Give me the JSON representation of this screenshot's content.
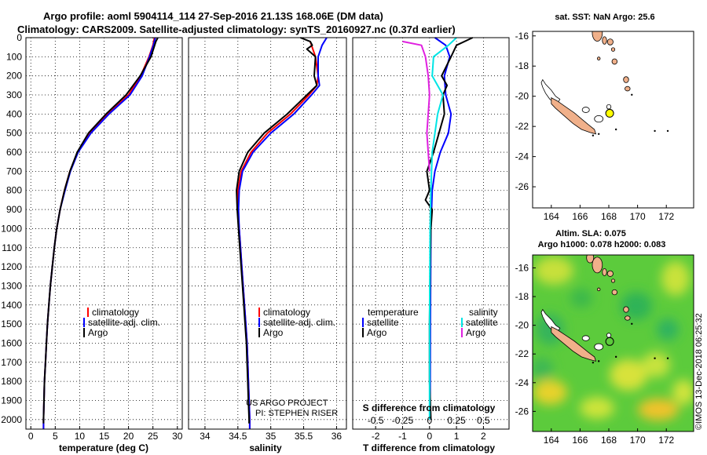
{
  "header": {
    "line1": "Argo profile: aoml 5904114_114 27-Sep-2016 21.13S 168.06E (DM data)",
    "line2": "Climatology: CARS2009. Satellite-adjusted climatology: synTS_20160927.nc (0.37d earlier)"
  },
  "colors": {
    "climatology": "#ff0000",
    "satellite": "#0000ff",
    "argo": "#000000",
    "sal_sat": "#00e5e5",
    "sal_argo": "#e020e0",
    "land": "#f0b08a"
  },
  "depth_ticks": [
    "0",
    "100",
    "200",
    "300",
    "400",
    "500",
    "600",
    "700",
    "800",
    "900",
    "1000",
    "1100",
    "1200",
    "1300",
    "1400",
    "1500",
    "1600",
    "1700",
    "1800",
    "1900",
    "2000"
  ],
  "credit": {
    "line1": "US ARGO PROJECT",
    "line2": "PI: STEPHEN RISER"
  },
  "timestamp": "©IMOS 13-Dec-2018 06:25:32",
  "chart_data": [
    {
      "type": "line",
      "xlabel": "temperature (deg C)",
      "xlim": [
        -1,
        31
      ],
      "ylim": [
        2050,
        0
      ],
      "x_ticks": [
        "0",
        "5",
        "10",
        "15",
        "20",
        "25",
        "30"
      ],
      "grid": true,
      "legend": [
        "climatology",
        "satellite-adj. clim.",
        "Argo"
      ],
      "series": [
        {
          "name": "climatology",
          "color": "#ff0000",
          "points": [
            [
              25.3,
              0
            ],
            [
              25.0,
              40
            ],
            [
              24.2,
              100
            ],
            [
              22.5,
              200
            ],
            [
              20.0,
              300
            ],
            [
              15.8,
              400
            ],
            [
              12.0,
              500
            ],
            [
              9.6,
              600
            ],
            [
              8.0,
              700
            ],
            [
              6.9,
              800
            ],
            [
              6.0,
              900
            ],
            [
              5.3,
              1000
            ],
            [
              4.8,
              1100
            ],
            [
              4.4,
              1200
            ],
            [
              4.0,
              1300
            ],
            [
              3.7,
              1400
            ],
            [
              3.4,
              1500
            ],
            [
              3.2,
              1600
            ],
            [
              3.0,
              1700
            ],
            [
              2.8,
              1800
            ],
            [
              2.7,
              1900
            ],
            [
              2.6,
              2000
            ],
            [
              2.6,
              2050
            ]
          ]
        },
        {
          "name": "satellite-adj. clim.",
          "color": "#0000ff",
          "points": [
            [
              25.5,
              0
            ],
            [
              25.1,
              40
            ],
            [
              24.3,
              100
            ],
            [
              22.8,
              200
            ],
            [
              20.3,
              300
            ],
            [
              16.0,
              400
            ],
            [
              12.3,
              500
            ],
            [
              9.7,
              600
            ],
            [
              8.1,
              700
            ],
            [
              7.0,
              800
            ],
            [
              6.0,
              900
            ],
            [
              5.3,
              1000
            ],
            [
              4.8,
              1100
            ],
            [
              4.4,
              1200
            ],
            [
              4.0,
              1300
            ],
            [
              3.7,
              1400
            ],
            [
              3.4,
              1500
            ],
            [
              3.2,
              1600
            ],
            [
              3.0,
              1700
            ],
            [
              2.8,
              1800
            ],
            [
              2.7,
              1900
            ],
            [
              2.6,
              2000
            ],
            [
              2.6,
              2050
            ]
          ]
        },
        {
          "name": "Argo",
          "color": "#000000",
          "points": [
            [
              26.0,
              0
            ],
            [
              25.6,
              20
            ],
            [
              24.6,
              100
            ],
            [
              22.4,
              200
            ],
            [
              19.5,
              300
            ],
            [
              15.4,
              400
            ],
            [
              11.8,
              500
            ],
            [
              9.5,
              600
            ],
            [
              8.0,
              700
            ],
            [
              6.9,
              800
            ],
            [
              6.0,
              900
            ],
            [
              5.3,
              1000
            ],
            [
              4.8,
              1100
            ],
            [
              4.4,
              1200
            ],
            [
              4.0,
              1300
            ],
            [
              3.7,
              1400
            ],
            [
              3.4,
              1500
            ],
            [
              3.2,
              1600
            ],
            [
              3.0,
              1700
            ],
            [
              2.8,
              1800
            ],
            [
              2.7,
              1900
            ],
            [
              2.6,
              2000
            ],
            [
              2.6,
              2020
            ]
          ]
        }
      ]
    },
    {
      "type": "line",
      "xlabel": "salinity",
      "xlim": [
        33.75,
        36.15
      ],
      "ylim": [
        2050,
        0
      ],
      "x_ticks": [
        "34",
        "34.5",
        "35",
        "35.5",
        "36"
      ],
      "grid": true,
      "legend": [
        "climatology",
        "satellite-adj. clim.",
        "Argo"
      ],
      "series": [
        {
          "name": "climatology",
          "color": "#ff0000",
          "points": [
            [
              35.6,
              20
            ],
            [
              35.68,
              100
            ],
            [
              35.72,
              200
            ],
            [
              35.7,
              250
            ],
            [
              35.58,
              300
            ],
            [
              35.3,
              400
            ],
            [
              34.95,
              500
            ],
            [
              34.7,
              600
            ],
            [
              34.55,
              700
            ],
            [
              34.5,
              800
            ],
            [
              34.5,
              900
            ],
            [
              34.52,
              1000
            ],
            [
              34.54,
              1100
            ],
            [
              34.56,
              1200
            ],
            [
              34.58,
              1300
            ],
            [
              34.6,
              1400
            ],
            [
              34.62,
              1500
            ],
            [
              34.64,
              1600
            ],
            [
              34.65,
              1700
            ],
            [
              34.66,
              1800
            ],
            [
              34.67,
              1900
            ],
            [
              34.68,
              2000
            ],
            [
              34.68,
              2050
            ]
          ]
        },
        {
          "name": "satellite-adj. clim.",
          "color": "#0000ff",
          "points": [
            [
              35.85,
              0
            ],
            [
              35.78,
              40
            ],
            [
              35.72,
              100
            ],
            [
              35.72,
              200
            ],
            [
              35.74,
              250
            ],
            [
              35.62,
              300
            ],
            [
              35.35,
              400
            ],
            [
              35.0,
              500
            ],
            [
              34.73,
              600
            ],
            [
              34.57,
              700
            ],
            [
              34.52,
              800
            ],
            [
              34.51,
              900
            ],
            [
              34.52,
              1000
            ],
            [
              34.54,
              1100
            ],
            [
              34.56,
              1200
            ],
            [
              34.58,
              1300
            ],
            [
              34.6,
              1400
            ],
            [
              34.62,
              1500
            ],
            [
              34.64,
              1600
            ],
            [
              34.65,
              1700
            ],
            [
              34.66,
              1800
            ],
            [
              34.67,
              1900
            ],
            [
              34.68,
              2000
            ],
            [
              34.68,
              2050
            ]
          ]
        },
        {
          "name": "Argo",
          "color": "#000000",
          "points": [
            [
              35.45,
              0
            ],
            [
              35.6,
              20
            ],
            [
              35.63,
              40
            ],
            [
              35.55,
              60
            ],
            [
              35.68,
              100
            ],
            [
              35.66,
              200
            ],
            [
              35.7,
              250
            ],
            [
              35.55,
              300
            ],
            [
              35.25,
              400
            ],
            [
              34.9,
              500
            ],
            [
              34.65,
              600
            ],
            [
              34.52,
              700
            ],
            [
              34.48,
              800
            ],
            [
              34.49,
              900
            ],
            [
              34.51,
              1000
            ],
            [
              34.53,
              1100
            ],
            [
              34.55,
              1200
            ],
            [
              34.57,
              1300
            ],
            [
              34.59,
              1400
            ],
            [
              34.61,
              1500
            ],
            [
              34.63,
              1600
            ],
            [
              34.64,
              1700
            ],
            [
              34.65,
              1800
            ],
            [
              34.66,
              1900
            ],
            [
              34.67,
              2000
            ],
            [
              34.67,
              2020
            ]
          ]
        }
      ]
    },
    {
      "type": "line",
      "xlabel": "T difference from climatology",
      "xlabel_top": "S difference from climatology",
      "xlim": [
        -2.85,
        2.95
      ],
      "ylim": [
        2050,
        0
      ],
      "x_ticks": [
        "-2",
        "-1",
        "0",
        "1",
        "2"
      ],
      "x_ticks_S": [
        "-0.5",
        "-0.25",
        "0",
        "0.25",
        "0.5"
      ],
      "grid": true,
      "legend_left": {
        "title": "temperature",
        "items": [
          "satellite",
          "Argo"
        ]
      },
      "legend_right": {
        "title": "salinity",
        "items": [
          "satellite",
          "Argo"
        ]
      },
      "series": [
        {
          "name": "temperature satellite",
          "color": "#0000ff",
          "points": [
            [
              0.2,
              0
            ],
            [
              0.6,
              40
            ],
            [
              0.75,
              100
            ],
            [
              0.55,
              200
            ],
            [
              0.6,
              300
            ],
            [
              0.8,
              400
            ],
            [
              0.7,
              500
            ],
            [
              0.4,
              600
            ],
            [
              0.2,
              700
            ],
            [
              0.1,
              800
            ],
            [
              0.05,
              1000
            ],
            [
              0.03,
              1500
            ],
            [
              0.02,
              2000
            ]
          ]
        },
        {
          "name": "temperature Argo",
          "color": "#000000",
          "points": [
            [
              1.6,
              0
            ],
            [
              1.0,
              40
            ],
            [
              0.8,
              100
            ],
            [
              0.45,
              200
            ],
            [
              0.65,
              250
            ],
            [
              0.5,
              300
            ],
            [
              0.55,
              400
            ],
            [
              0.35,
              500
            ],
            [
              0.15,
              600
            ],
            [
              -0.1,
              700
            ],
            [
              0.0,
              800
            ],
            [
              -0.15,
              850
            ],
            [
              0.1,
              900
            ],
            [
              0.05,
              1000
            ],
            [
              0.02,
              1200
            ],
            [
              0.0,
              1500
            ],
            [
              0.0,
              1800
            ],
            [
              0.05,
              2000
            ]
          ]
        },
        {
          "name": "salinity satellite",
          "color": "#00e5e5",
          "points": [
            [
              1.0,
              0
            ],
            [
              0.7,
              40
            ],
            [
              0.15,
              100
            ],
            [
              0.1,
              200
            ],
            [
              0.5,
              300
            ],
            [
              0.3,
              400
            ],
            [
              0.1,
              600
            ],
            [
              0.05,
              800
            ],
            [
              0.02,
              1000
            ],
            [
              0.0,
              1500
            ],
            [
              0.0,
              2000
            ]
          ]
        },
        {
          "name": "salinity Argo",
          "color": "#e020e0",
          "points": [
            [
              -1.0,
              20
            ],
            [
              -0.3,
              40
            ],
            [
              -0.15,
              100
            ],
            [
              -0.05,
              200
            ],
            [
              0.0,
              300
            ],
            [
              -0.05,
              400
            ],
            [
              -0.1,
              500
            ],
            [
              -0.05,
              600
            ],
            [
              0.0,
              700
            ]
          ]
        }
      ]
    },
    {
      "type": "map",
      "title": "sat. SST: NaN Argo: 25.6",
      "xlim": [
        162.7,
        173.9
      ],
      "ylim": [
        -27.4,
        -15.7
      ],
      "x_ticks": [
        "164",
        "166",
        "168",
        "170",
        "172"
      ],
      "y_ticks": [
        "-16",
        "-18",
        "-20",
        "-22",
        "-24",
        "-26"
      ],
      "argo_position": [
        168.06,
        -21.13
      ]
    },
    {
      "type": "heatmap",
      "title": "Altim. SLA: 0.075",
      "subtitle": "Argo h1000: 0.078 h2000: 0.083",
      "xlim": [
        162.7,
        173.9
      ],
      "ylim": [
        -27.4,
        -15.1
      ],
      "x_ticks": [
        "164",
        "166",
        "168",
        "170",
        "172"
      ],
      "y_ticks": [
        "-16",
        "-18",
        "-20",
        "-22",
        "-24",
        "-26"
      ],
      "argo_position": [
        168.06,
        -21.13
      ]
    }
  ]
}
